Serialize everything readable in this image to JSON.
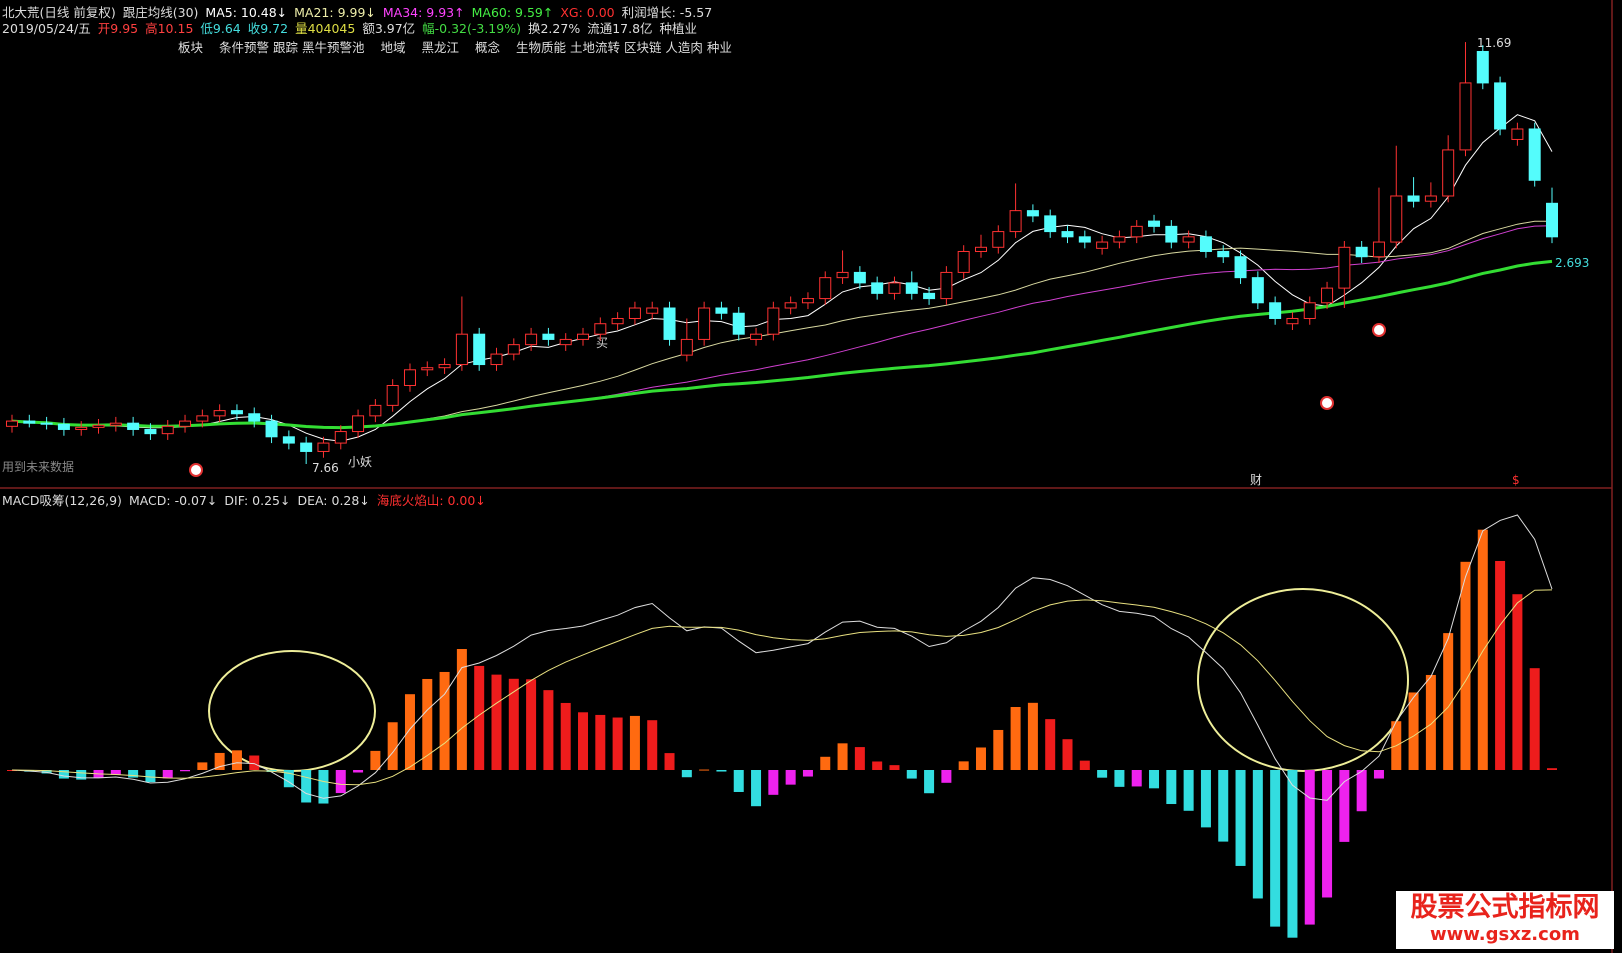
{
  "header": {
    "line1": [
      {
        "text": "北大荒(日线 前复权)",
        "color": "#dddddd"
      },
      {
        "text": "跟庄均线(30)",
        "color": "#dddddd"
      },
      {
        "text": "MA5: 10.48↓",
        "color": "#ffffff"
      },
      {
        "text": "MA21: 9.99↓",
        "color": "#eeeeaa"
      },
      {
        "text": "MA34: 9.93↑",
        "color": "#ff44ff"
      },
      {
        "text": "MA60: 9.59↑",
        "color": "#44ee44"
      },
      {
        "text": "XG: 0.00",
        "color": "#ff3030"
      },
      {
        "text": "利润增长: -5.57",
        "color": "#dddddd"
      }
    ],
    "line2": [
      {
        "text": "2019/05/24/五",
        "color": "#dddddd"
      },
      {
        "text": "开9.95",
        "color": "#ff4040"
      },
      {
        "text": "高10.15",
        "color": "#ff4040"
      },
      {
        "text": "低9.64",
        "color": "#44dddd"
      },
      {
        "text": "收9.72",
        "color": "#44dddd"
      },
      {
        "text": "量404045",
        "color": "#dddd44"
      },
      {
        "text": "额3.97亿",
        "color": "#dddddd"
      },
      {
        "text": "幅-0.32(-3.19%)",
        "color": "#44dd44"
      },
      {
        "text": "换2.27%",
        "color": "#dddddd"
      },
      {
        "text": "流通17.8亿",
        "color": "#dddddd"
      },
      {
        "text": "种植业",
        "color": "#dddddd"
      }
    ],
    "line3": [
      {
        "text": "板块",
        "color": "#dddddd"
      },
      {
        "text": "条件预警 跟踪 黑牛预警池",
        "color": "#dddddd"
      },
      {
        "text": "地域",
        "color": "#dddddd"
      },
      {
        "text": "黑龙江",
        "color": "#dddddd"
      },
      {
        "text": "概念",
        "color": "#dddddd"
      },
      {
        "text": "生物质能 土地流转 区块链 人造肉 种业",
        "color": "#dddddd"
      }
    ]
  },
  "chart_data": {
    "type": "candlestick",
    "open": [
      8.02,
      8.07,
      8.05,
      8.04,
      7.99,
      8.01,
      8.03,
      8.05,
      7.99,
      7.95,
      8.02,
      8.07,
      8.12,
      8.17,
      8.14,
      8.07,
      7.92,
      7.86,
      7.78,
      7.86,
      7.97,
      8.12,
      8.22,
      8.41,
      8.56,
      8.58,
      8.61,
      8.9,
      8.61,
      8.71,
      8.8,
      8.9,
      8.8,
      8.85,
      8.9,
      9.0,
      9.05,
      9.1,
      9.15,
      8.7,
      8.85,
      9.15,
      9.1,
      8.85,
      8.9,
      9.15,
      9.2,
      9.24,
      9.44,
      9.49,
      9.39,
      9.29,
      9.39,
      9.29,
      9.24,
      9.49,
      9.69,
      9.73,
      9.88,
      10.08,
      10.03,
      9.88,
      9.83,
      9.72,
      9.78,
      9.83,
      9.98,
      9.93,
      9.78,
      9.83,
      9.69,
      9.64,
      9.44,
      9.2,
      9.0,
      9.05,
      9.2,
      9.34,
      9.73,
      9.64,
      9.78,
      10.22,
      10.17,
      10.22,
      10.66,
      11.6,
      11.3,
      10.76,
      10.86,
      10.15
    ],
    "high": [
      8.13,
      8.13,
      8.11,
      8.1,
      8.07,
      8.09,
      8.11,
      8.11,
      8.05,
      8.08,
      8.13,
      8.18,
      8.23,
      8.23,
      8.2,
      8.13,
      7.98,
      7.92,
      7.92,
      8.03,
      8.18,
      8.28,
      8.47,
      8.62,
      8.64,
      8.67,
      9.26,
      8.96,
      8.77,
      8.86,
      8.96,
      8.96,
      8.91,
      8.96,
      9.06,
      9.11,
      9.21,
      9.21,
      9.21,
      9.05,
      9.21,
      9.21,
      9.16,
      8.96,
      9.21,
      9.26,
      9.3,
      9.5,
      9.7,
      9.55,
      9.45,
      9.45,
      9.5,
      9.35,
      9.55,
      9.75,
      9.85,
      9.94,
      10.34,
      10.14,
      10.09,
      9.94,
      9.89,
      9.84,
      9.89,
      9.99,
      10.04,
      9.99,
      9.89,
      9.89,
      9.75,
      9.7,
      9.5,
      9.26,
      9.11,
      9.26,
      9.4,
      9.79,
      9.79,
      10.3,
      10.7,
      10.4,
      10.35,
      10.8,
      11.69,
      11.66,
      11.36,
      10.92,
      10.92,
      10.3
    ],
    "low": [
      7.96,
      8.01,
      7.99,
      7.93,
      7.93,
      7.95,
      7.97,
      7.93,
      7.89,
      7.89,
      7.96,
      8.01,
      8.06,
      8.08,
      8.01,
      7.86,
      7.8,
      7.66,
      7.72,
      7.8,
      7.91,
      8.06,
      8.16,
      8.35,
      8.5,
      8.52,
      8.55,
      8.55,
      8.55,
      8.65,
      8.74,
      8.79,
      8.74,
      8.79,
      8.84,
      8.94,
      8.99,
      9.04,
      8.79,
      8.64,
      8.79,
      9.04,
      8.84,
      8.79,
      8.84,
      9.09,
      9.14,
      9.18,
      9.38,
      9.33,
      9.23,
      9.23,
      9.23,
      9.18,
      9.18,
      9.43,
      9.63,
      9.67,
      9.82,
      9.97,
      9.82,
      9.77,
      9.72,
      9.66,
      9.72,
      9.77,
      9.87,
      9.72,
      9.72,
      9.63,
      9.58,
      9.38,
      9.14,
      8.99,
      8.94,
      8.99,
      9.14,
      9.15,
      9.58,
      9.58,
      9.72,
      10.11,
      10.11,
      10.16,
      10.6,
      11.24,
      10.8,
      10.7,
      10.31,
      9.77
    ],
    "close": [
      8.07,
      8.05,
      8.04,
      7.99,
      8.01,
      8.03,
      8.05,
      7.99,
      7.95,
      8.02,
      8.07,
      8.12,
      8.17,
      8.14,
      8.07,
      7.92,
      7.86,
      7.78,
      7.86,
      7.97,
      8.12,
      8.22,
      8.41,
      8.56,
      8.58,
      8.61,
      8.9,
      8.61,
      8.71,
      8.8,
      8.9,
      8.85,
      8.85,
      8.9,
      9.0,
      9.05,
      9.15,
      9.15,
      8.85,
      8.85,
      9.15,
      9.1,
      8.9,
      8.9,
      9.15,
      9.2,
      9.24,
      9.44,
      9.49,
      9.39,
      9.29,
      9.39,
      9.29,
      9.24,
      9.49,
      9.69,
      9.73,
      9.88,
      10.08,
      10.03,
      9.88,
      9.83,
      9.78,
      9.78,
      9.83,
      9.93,
      9.93,
      9.78,
      9.83,
      9.69,
      9.64,
      9.44,
      9.2,
      9.05,
      9.05,
      9.2,
      9.34,
      9.73,
      9.64,
      9.78,
      10.22,
      10.17,
      10.22,
      10.66,
      11.3,
      11.3,
      10.86,
      10.86,
      10.37,
      9.83
    ],
    "up_color": "#ff3232",
    "down_color": "#54fcfc",
    "ylim": [
      7.45,
      11.92
    ],
    "ma_lines": [
      {
        "period": 5,
        "color": "#ffffff",
        "width": 1
      },
      {
        "period": 21,
        "color": "#d8d8a0",
        "width": 1
      },
      {
        "period": 34,
        "color": "#d040d0",
        "width": 1
      },
      {
        "period": 60,
        "color": "#33dd33",
        "width": 3
      }
    ],
    "high_label": 11.69,
    "low_label": 7.66,
    "ma_label": 2.693,
    "note": "用到未来数据",
    "yao": "小妖",
    "cai": "财",
    "dollar": "$",
    "buy": "买"
  },
  "macd": {
    "title": "MACD吸筹(12,26,9)",
    "params": [
      12,
      26,
      9
    ],
    "items": [
      {
        "text": "MACD: -0.07↓",
        "color": "#dddddd"
      },
      {
        "text": "DIF: 0.25↓",
        "color": "#dddddd"
      },
      {
        "text": "DEA: 0.28↓",
        "color": "#dddddd"
      },
      {
        "text": "海底火焰山: 0.00↓",
        "color": "#ff3030"
      }
    ]
  },
  "watermark": {
    "name": "股票公式指标网",
    "url": "www.gsxz.com"
  }
}
